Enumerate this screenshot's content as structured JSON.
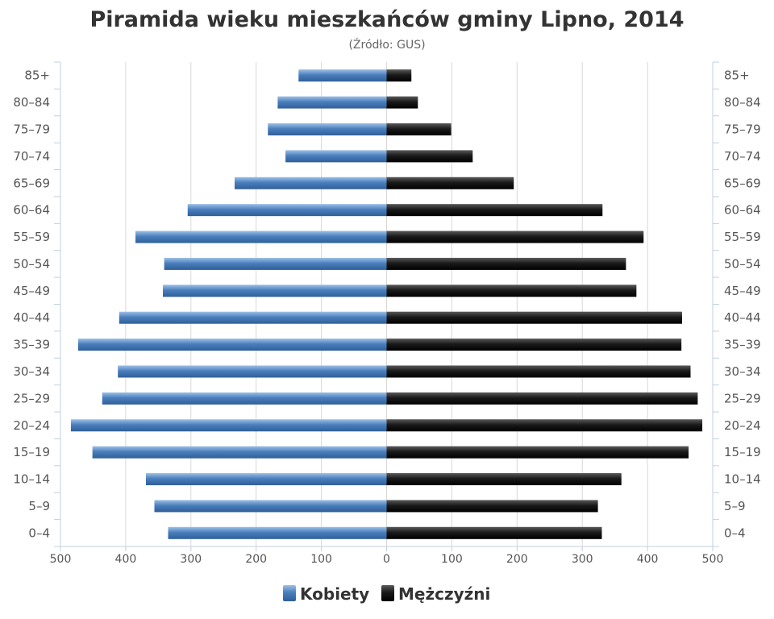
{
  "chart_data": {
    "type": "bar",
    "orientation": "horizontal-population-pyramid",
    "title": "Piramida wieku mieszkańców gminy Lipno, 2014",
    "subtitle": "(Źródło: GUS)",
    "categories": [
      "85+",
      "80–84",
      "75–79",
      "70–74",
      "65–69",
      "60–64",
      "55–59",
      "50–54",
      "45–49",
      "40–44",
      "35–39",
      "30–34",
      "25–29",
      "20–24",
      "15–19",
      "10–14",
      "5–9",
      "0–4"
    ],
    "series": [
      {
        "name": "Kobiety",
        "side": "left",
        "color": "#4a7fbd",
        "values": [
          135,
          167,
          182,
          155,
          233,
          305,
          385,
          341,
          343,
          410,
          473,
          412,
          436,
          484,
          451,
          369,
          356,
          335
        ]
      },
      {
        "name": "Mężczyźni",
        "side": "right",
        "color": "#1a1a1a",
        "values": [
          38,
          48,
          99,
          132,
          195,
          331,
          394,
          367,
          383,
          453,
          452,
          466,
          477,
          484,
          463,
          360,
          324,
          330
        ]
      }
    ],
    "xlim": [
      -500,
      500
    ],
    "x_ticks": [
      {
        "value": -500,
        "label": "500"
      },
      {
        "value": -400,
        "label": "400"
      },
      {
        "value": -300,
        "label": "300"
      },
      {
        "value": -200,
        "label": "200"
      },
      {
        "value": -100,
        "label": "100"
      },
      {
        "value": 0,
        "label": "0"
      },
      {
        "value": 100,
        "label": "100"
      },
      {
        "value": 200,
        "label": "200"
      },
      {
        "value": 300,
        "label": "300"
      },
      {
        "value": 400,
        "label": "400"
      },
      {
        "value": 500,
        "label": "500"
      }
    ],
    "grid": true,
    "legend": "bottom-center"
  }
}
